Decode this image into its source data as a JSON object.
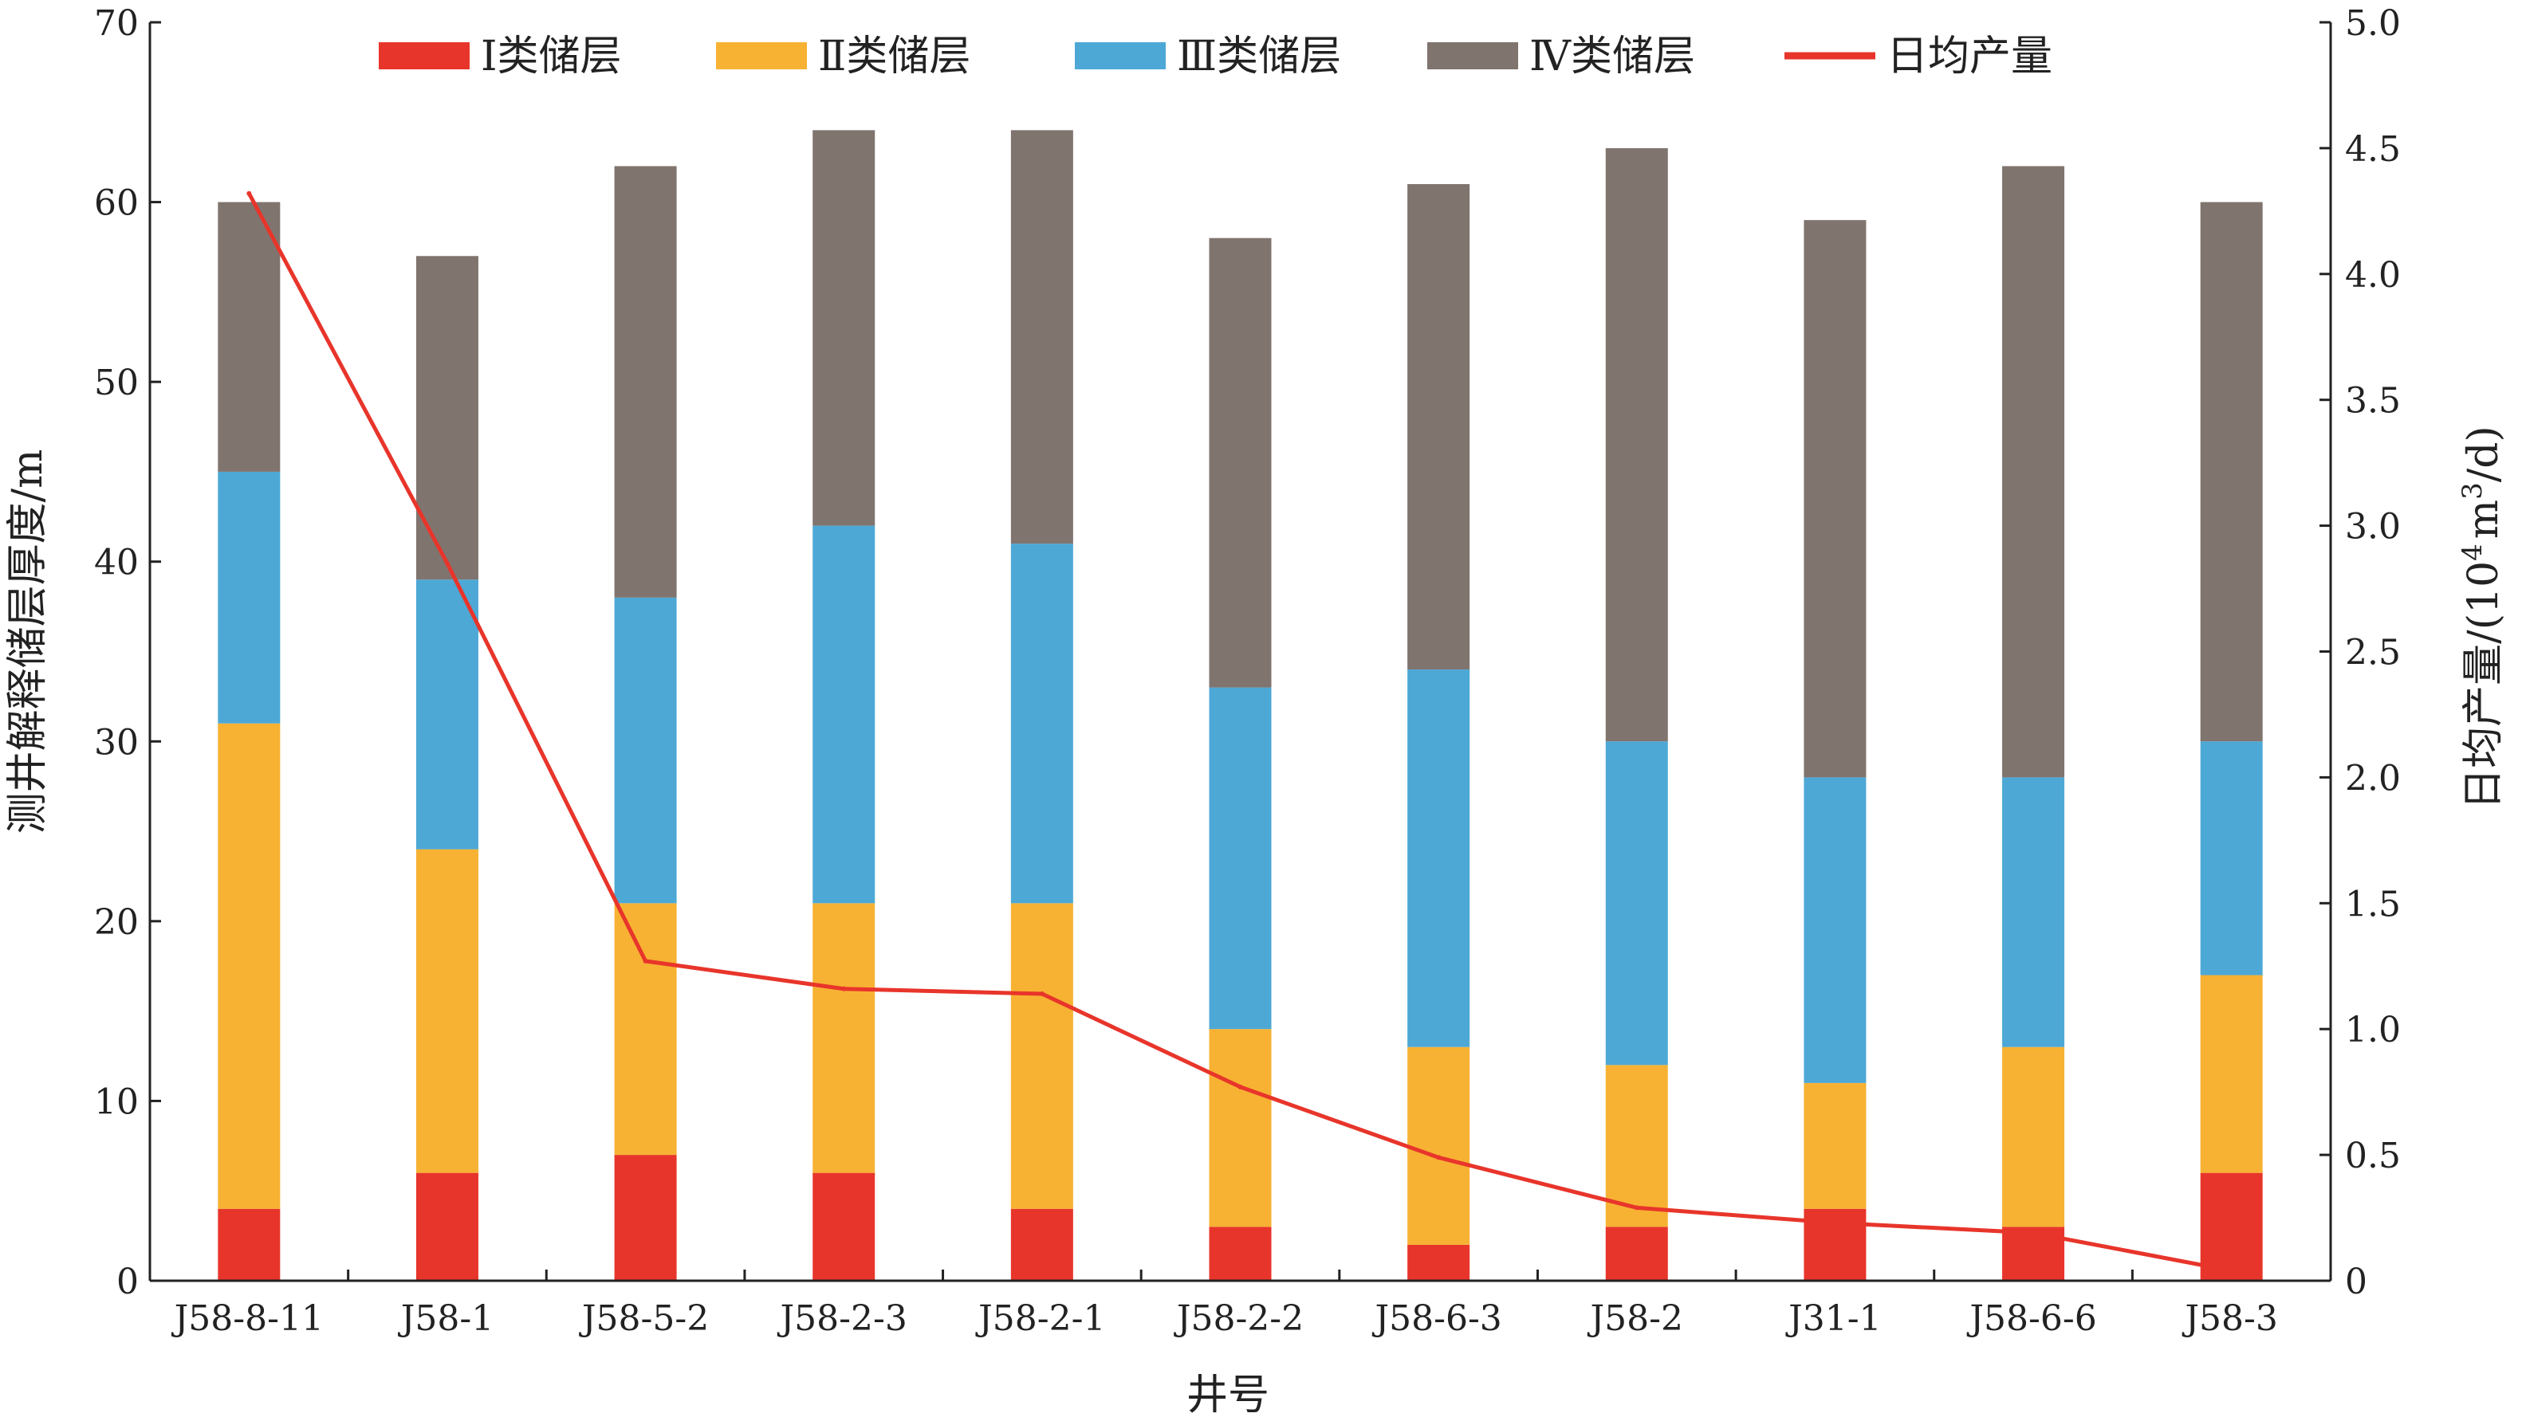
{
  "chart_data": {
    "type": "bar",
    "stacked": true,
    "categories": [
      "J58-8-11",
      "J58-1",
      "J58-5-2",
      "J58-2-3",
      "J58-2-1",
      "J58-2-2",
      "J58-6-3",
      "J58-2",
      "J31-1",
      "J58-6-6",
      "J58-3"
    ],
    "series": [
      {
        "name": "Ⅰ类储层",
        "color": "#e8352b",
        "values": [
          4,
          6,
          7,
          6,
          4,
          3,
          2,
          3,
          4,
          3,
          6
        ]
      },
      {
        "name": "Ⅱ类储层",
        "color": "#f7b233",
        "values": [
          27,
          18,
          14,
          15,
          17,
          11,
          11,
          9,
          7,
          10,
          11
        ]
      },
      {
        "name": "Ⅲ类储层",
        "color": "#4da8d6",
        "values": [
          14,
          15,
          17,
          21,
          20,
          19,
          21,
          18,
          17,
          15,
          13
        ]
      },
      {
        "name": "Ⅳ类储层",
        "color": "#80746f",
        "values": [
          15,
          18,
          24,
          22,
          23,
          25,
          27,
          33,
          31,
          34,
          30
        ]
      }
    ],
    "line_series": {
      "name": "日均产量",
      "color": "#e8352b",
      "axis": "right",
      "values": [
        4.32,
        2.85,
        1.27,
        1.16,
        1.14,
        0.77,
        0.49,
        0.29,
        0.23,
        0.19,
        0.04
      ]
    },
    "xlabel": "井号",
    "ylabel": "测井解释储层厚度/m",
    "ylabel_right": {
      "pre": "日均产量/(10",
      "sup1": "4",
      "mid": "m",
      "sup2": "3",
      "post": "/d)"
    },
    "ylim": [
      0,
      70
    ],
    "yticks": [
      0,
      10,
      20,
      30,
      40,
      50,
      60,
      70
    ],
    "ylim_right": [
      0,
      5.0
    ],
    "yticks_right": [
      "0",
      "0.5",
      "1.0",
      "1.5",
      "2.0",
      "2.5",
      "3.0",
      "3.5",
      "4.0",
      "4.5",
      "5.0"
    ],
    "legend_position": "top",
    "grid": false
  }
}
